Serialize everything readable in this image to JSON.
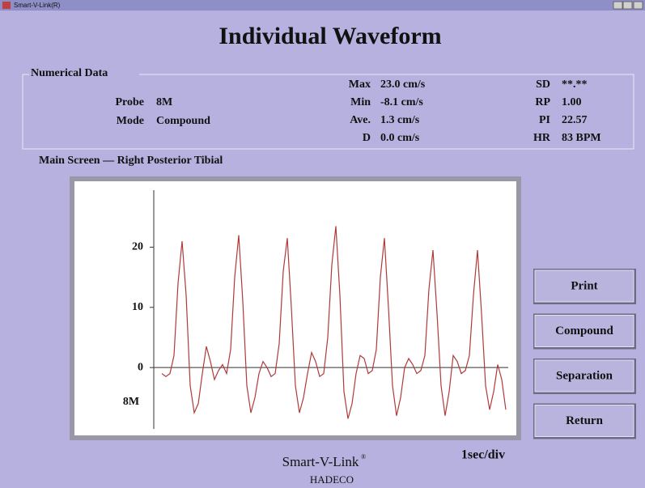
{
  "window": {
    "title": "Smart-V-Link(R)"
  },
  "header": {
    "title": "Individual Waveform"
  },
  "numerical_data": {
    "label": "Numerical Data",
    "probe_label": "Probe",
    "probe": "8M",
    "mode_label": "Mode",
    "mode": "Compound",
    "stats_left": [
      {
        "label": "Max",
        "value": "23.0 cm/s"
      },
      {
        "label": "Min",
        "value": "-8.1 cm/s"
      },
      {
        "label": "Ave.",
        "value": "1.3 cm/s"
      },
      {
        "label": "D",
        "value": "0.0 cm/s"
      }
    ],
    "stats_right": [
      {
        "label": "SD",
        "value": "**.**"
      },
      {
        "label": "RP",
        "value": "1.00"
      },
      {
        "label": "PI",
        "value": "22.57"
      },
      {
        "label": "HR",
        "value": "83 BPM"
      }
    ]
  },
  "chart_data": {
    "type": "line",
    "title": "Main Screen — Right Posterior Tibial",
    "probe": "8M",
    "scale": "1sec/div",
    "color": "#b03a3a",
    "ylim": [
      -11,
      30
    ],
    "yticks": [
      0,
      10,
      20
    ],
    "values": [
      -1,
      -1.5,
      -1,
      2,
      14,
      21,
      12,
      -3,
      -7.5,
      -6,
      -1,
      3.5,
      1,
      -2,
      -0.5,
      0.5,
      -1,
      3,
      15,
      22,
      11,
      -3,
      -7.5,
      -5,
      -1,
      1,
      0,
      -1.5,
      -1,
      4,
      16,
      21.5,
      10,
      -3,
      -7.5,
      -5,
      -1,
      2.5,
      1,
      -1.5,
      -1,
      5,
      17,
      23.5,
      12,
      -4,
      -8.5,
      -6,
      -1,
      2,
      1.5,
      -1,
      -0.5,
      3,
      15,
      21.5,
      10,
      -3,
      -8,
      -5,
      0,
      1.5,
      0.5,
      -1,
      -0.5,
      2,
      13,
      19.5,
      9,
      -3,
      -8,
      -4,
      2,
      1,
      -1,
      -0.5,
      2,
      12,
      19.5,
      9,
      -3,
      -7,
      -4,
      0.5,
      -2,
      -7
    ]
  },
  "buttons": [
    "Print",
    "Compound",
    "Separation",
    "Return"
  ],
  "footer": {
    "brand": "Smart-V-Link",
    "brand_mark": "®",
    "company": "HADECO"
  }
}
